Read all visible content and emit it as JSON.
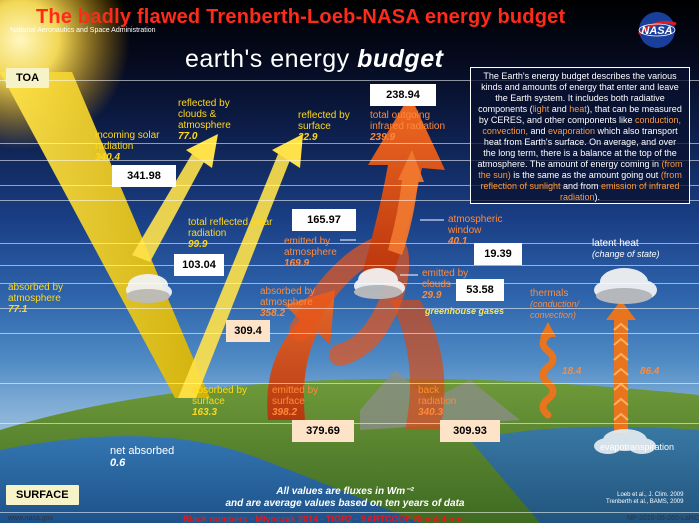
{
  "header": {
    "title": "The  badly flawed Trenberth-Loeb-NASA energy budget",
    "agency": "National Aeronautics and Space Administration",
    "subtitle_light": "earth's energy",
    "subtitle_bold": "budget",
    "logo_text": "NASA"
  },
  "tags": {
    "toa": "TOA",
    "surface": "SURFACE"
  },
  "info_box": {
    "p1": "The Earth's energy budget describes the various kinds and amounts of energy that enter and leave the Earth system. It includes both radiative components (",
    "light": "light",
    "and": " and ",
    "heat": "heat",
    "p2": "), that can be measured by CERES, and other components like ",
    "conduction": "conduction, convection,",
    "and2": " and ",
    "evaporation": "evaporation",
    "p3": " which also transport heat from Earth's surface. On average, and over the long term, there is a balance at the top of the atmosphere. The amount of energy coming in ",
    "from_sun": "(from the sun)",
    "p4": " is the same as the amount going out ",
    "reflection": "(from reflection of sunlight",
    "p5": " and from ",
    "emission": "emission of infrared radiation",
    "p6": ")."
  },
  "labels": {
    "incoming": {
      "text": "incoming solar radiation",
      "value": "340.4"
    },
    "reflected_clouds": {
      "text": "reflected by clouds & atmosphere",
      "value": "77.0"
    },
    "reflected_surface": {
      "text": "reflected by surface",
      "value": "22.9"
    },
    "total_outgoing": {
      "text": "total outgoing infrared radiation",
      "value": "239.9"
    },
    "total_reflected": {
      "text": "total reflected solar radiation",
      "value": "99.9"
    },
    "atm_window": {
      "text": "atmospheric window",
      "value": "40.1"
    },
    "emitted_atm": {
      "text": "emitted by atmosphere",
      "value": "169.9"
    },
    "emitted_clouds": {
      "text": "emitted by clouds",
      "value": "29.9"
    },
    "latent_heat": {
      "text": "latent heat",
      "sub": "(change of state)"
    },
    "absorbed_atm_left": {
      "text": "absorbed by atmosphere",
      "value": "77.1"
    },
    "absorbed_atm_mid": {
      "text": "absorbed by atmosphere",
      "value": "358.2"
    },
    "greenhouse": "greenhouse gases",
    "thermals": {
      "text": "thermals",
      "sub": "(conduction/ convection)"
    },
    "thermals_value": "18.4",
    "latent_value": "86.4",
    "absorbed_surface": {
      "text": "absorbed by surface",
      "value": "163.3"
    },
    "emitted_surface": {
      "text": "emitted by surface",
      "value": "398.2"
    },
    "back_radiation": {
      "text": "back radiation",
      "value": "340.3"
    },
    "net_absorbed": {
      "text": "net absorbed",
      "value": "0.6"
    },
    "evapotranspiration": "evapotranspiration"
  },
  "number_boxes": {
    "b238": "238.94",
    "b341": "341.98",
    "b165": "165.97",
    "b19": "19.39",
    "b103": "103.04",
    "b53": "53.58",
    "b309_4": "309.4",
    "b379": "379.69",
    "b309_93": "309.93"
  },
  "footer": {
    "note1": "All values are fluxes in Wm⁻²",
    "note2": "and are average values based on ten years of data",
    "cite1": "Loeb et al., J. Clim. 2009",
    "cite2": "Trenberth et al., BAMS, 2009",
    "url": "www.nasa.gov",
    "code": "NP-2010-05-265-LaRC",
    "red_line": "Black numbers - Mlynczak 2014 - TIGR2 - SARTCODE Simulations"
  },
  "colors": {
    "title_red": "#ff2a1a",
    "solar_yellow": "#ffd81e",
    "infrared_orange": "#e8541a",
    "tag_bg": "#f7f3c8"
  }
}
